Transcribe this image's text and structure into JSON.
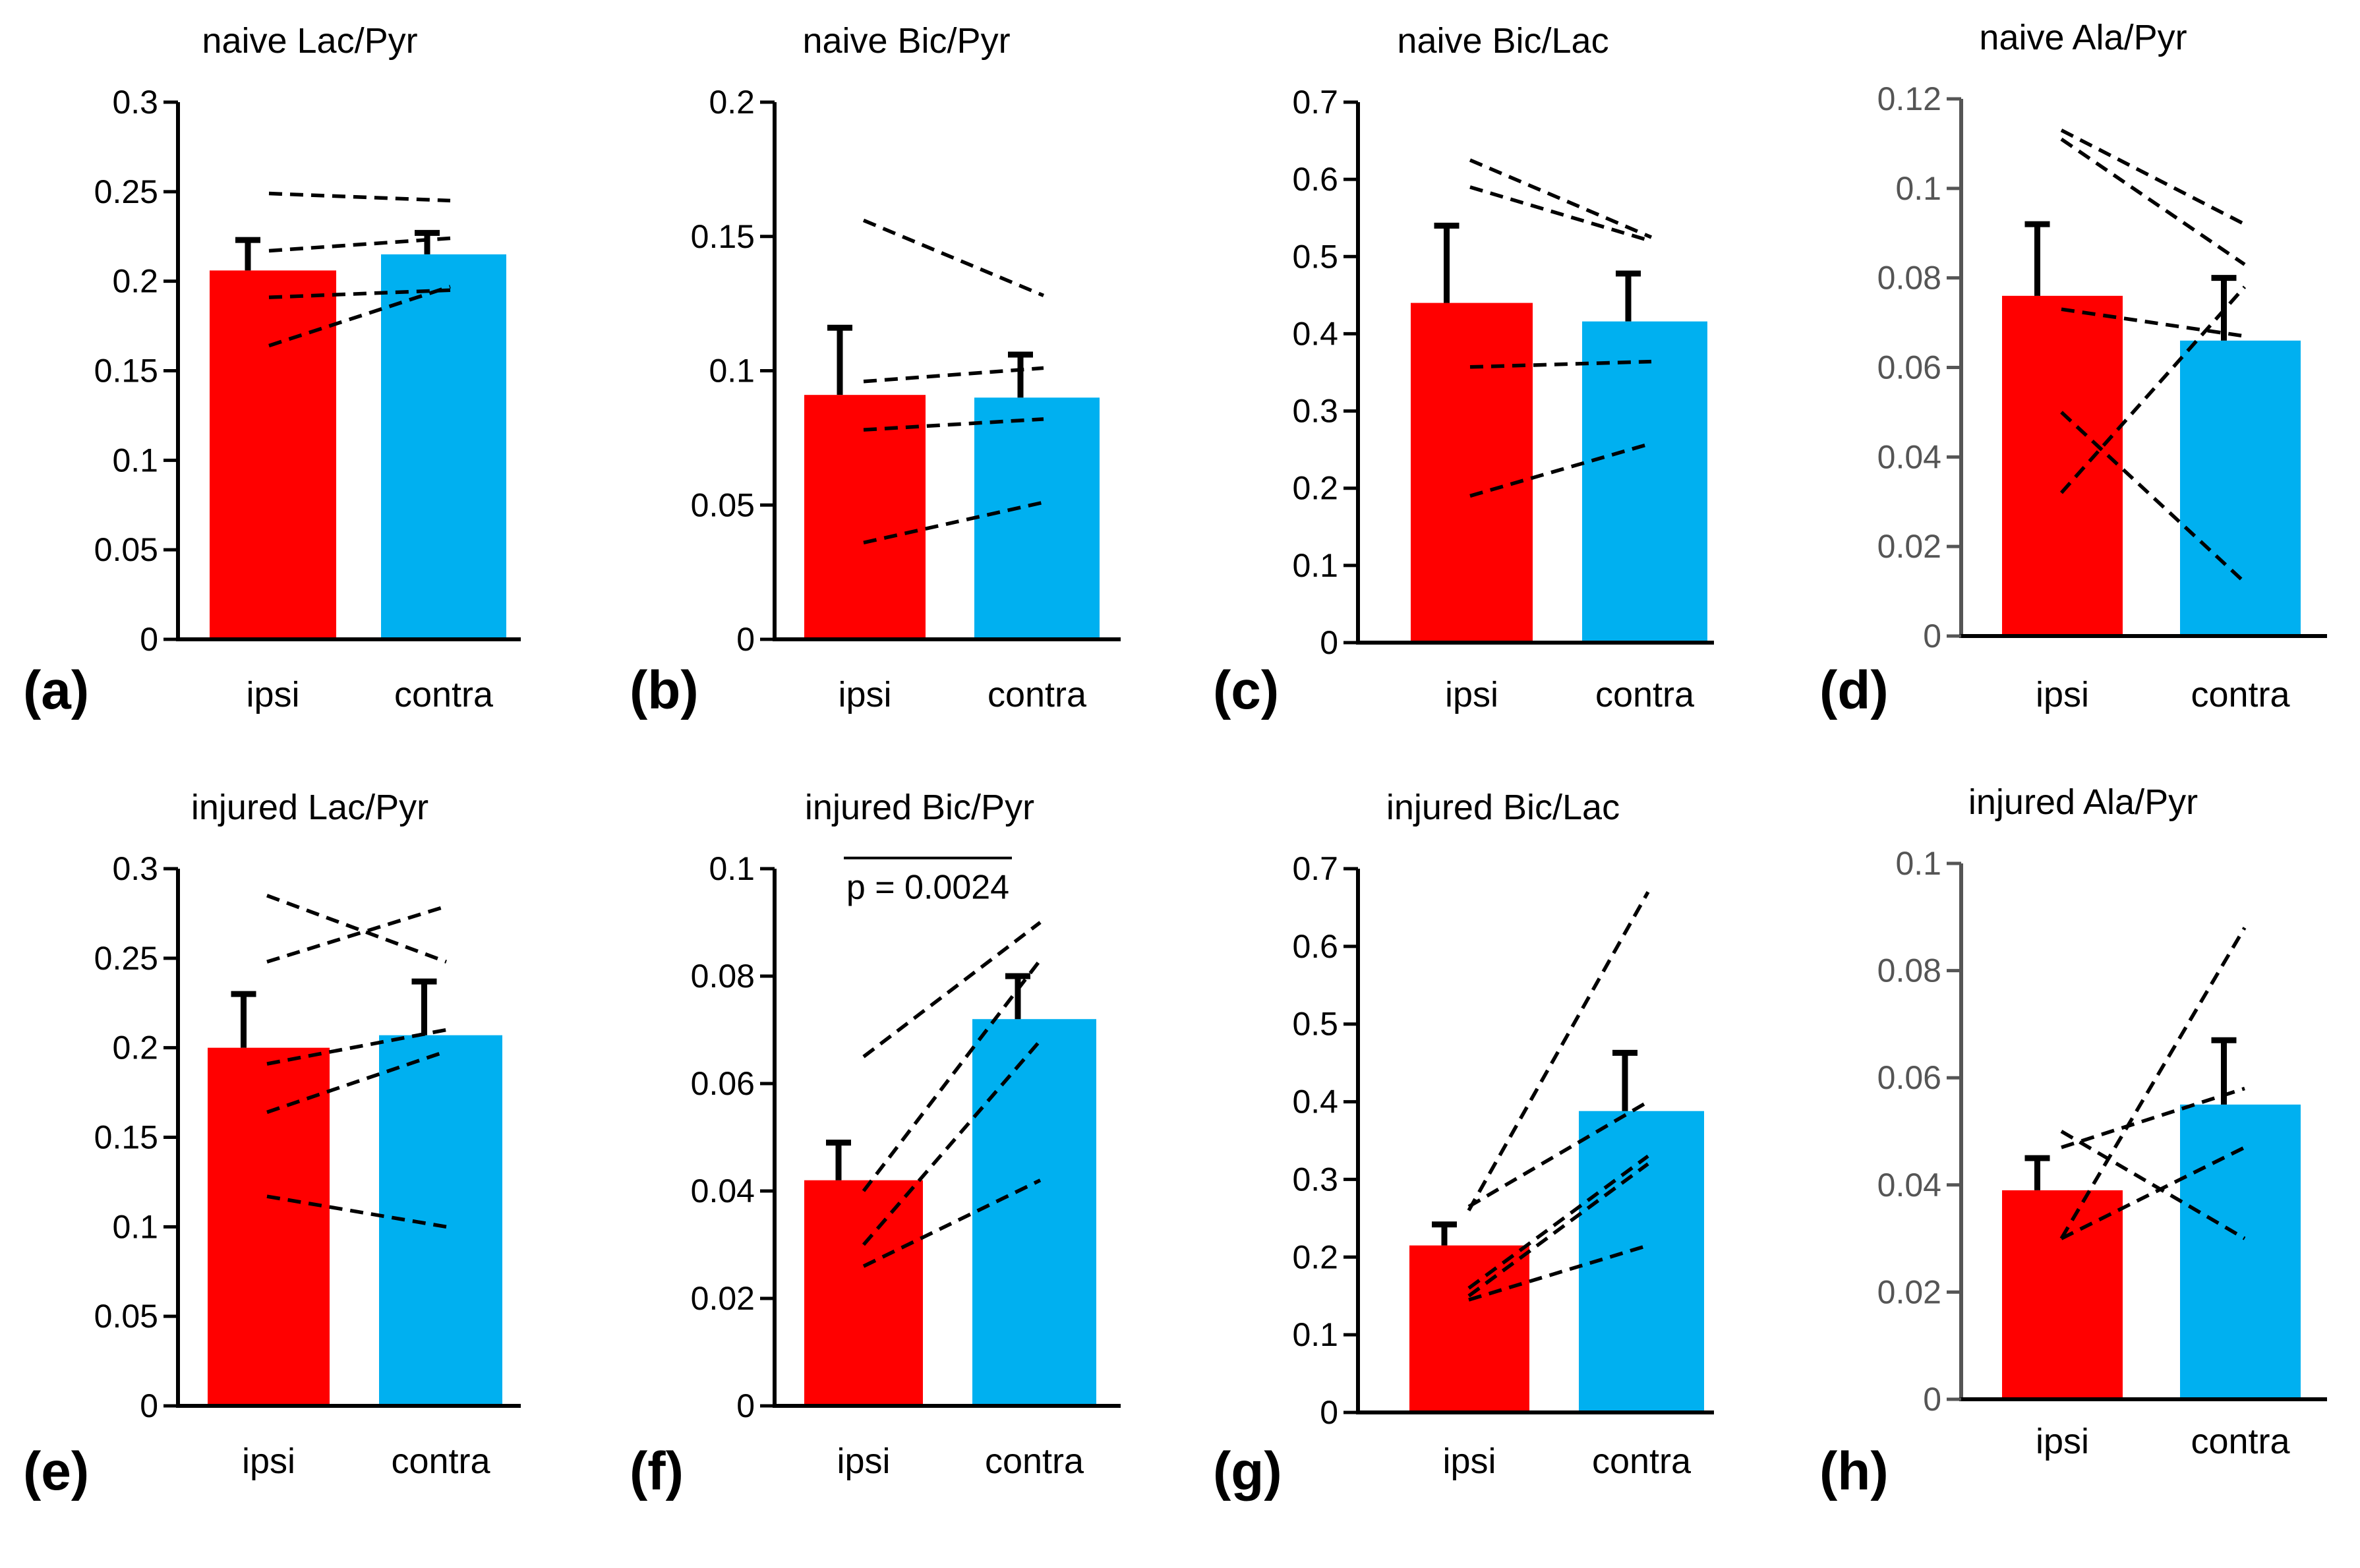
{
  "colors": {
    "ipsi": "#ff0000",
    "contra": "#00b0f0",
    "ink": "#000000",
    "axis_grey": "#555555"
  },
  "chart_data": [
    {
      "type": "bar",
      "panel": "(a)",
      "title": "naive Lac/Pyr",
      "categories": [
        "ipsi",
        "contra"
      ],
      "ylim": [
        0,
        0.3
      ],
      "yticks": [
        0,
        0.05,
        0.1,
        0.15,
        0.2,
        0.25,
        0.3
      ],
      "ytick_labels": [
        "0",
        "0.05",
        "0.1",
        "0.15",
        "0.2",
        "0.25",
        "0.3"
      ],
      "grey_axis": false,
      "values": [
        0.206,
        0.215
      ],
      "errors": [
        0.017,
        0.012
      ],
      "pairs": [
        [
          0.249,
          0.245
        ],
        [
          0.217,
          0.224
        ],
        [
          0.191,
          0.195
        ],
        [
          0.164,
          0.197
        ]
      ],
      "annotation": null
    },
    {
      "type": "bar",
      "panel": "(b)",
      "title": "naive Bic/Pyr",
      "categories": [
        "ipsi",
        "contra"
      ],
      "ylim": [
        0,
        0.2
      ],
      "yticks": [
        0,
        0.05,
        0.1,
        0.15,
        0.2
      ],
      "ytick_labels": [
        "0",
        "0.05",
        "0.1",
        "0.15",
        "0.2"
      ],
      "grey_axis": false,
      "values": [
        0.091,
        0.09
      ],
      "errors": [
        0.025,
        0.016
      ],
      "pairs": [
        [
          0.156,
          0.128
        ],
        [
          0.096,
          0.101
        ],
        [
          0.078,
          0.082
        ],
        [
          0.036,
          0.051
        ]
      ],
      "annotation": null
    },
    {
      "type": "bar",
      "panel": "(c)",
      "title": "naive Bic/Lac",
      "categories": [
        "ipsi",
        "contra"
      ],
      "ylim": [
        0,
        0.7
      ],
      "yticks": [
        0,
        0.1,
        0.2,
        0.3,
        0.4,
        0.5,
        0.6,
        0.7
      ],
      "ytick_labels": [
        "0",
        "0.1",
        "0.2",
        "0.3",
        "0.4",
        "0.5",
        "0.6",
        "0.7"
      ],
      "grey_axis": false,
      "values": [
        0.44,
        0.416
      ],
      "errors": [
        0.1,
        0.062
      ],
      "pairs": [
        [
          0.625,
          0.525
        ],
        [
          0.59,
          0.52
        ],
        [
          0.357,
          0.364
        ],
        [
          0.19,
          0.258
        ]
      ],
      "annotation": null
    },
    {
      "type": "bar",
      "panel": "(d)",
      "title": "naive Ala/Pyr",
      "categories": [
        "ipsi",
        "contra"
      ],
      "ylim": [
        0,
        0.12
      ],
      "yticks": [
        0,
        0.02,
        0.04,
        0.06,
        0.08,
        0.1,
        0.12
      ],
      "ytick_labels": [
        "0",
        "0.02",
        "0.04",
        "0.06",
        "0.08",
        "0.1",
        "0.12"
      ],
      "grey_axis": true,
      "values": [
        0.076,
        0.066
      ],
      "errors": [
        0.016,
        0.014
      ],
      "pairs": [
        [
          0.113,
          0.092
        ],
        [
          0.111,
          0.083
        ],
        [
          0.073,
          0.067
        ],
        [
          0.05,
          0.012
        ],
        [
          0.032,
          0.078
        ]
      ],
      "annotation": null
    },
    {
      "type": "bar",
      "panel": "(e)",
      "title": "injured Lac/Pyr",
      "categories": [
        "ipsi",
        "contra"
      ],
      "ylim": [
        0,
        0.3
      ],
      "yticks": [
        0,
        0.05,
        0.1,
        0.15,
        0.2,
        0.25,
        0.3
      ],
      "ytick_labels": [
        "0",
        "0.05",
        "0.1",
        "0.15",
        "0.2",
        "0.25",
        "0.3"
      ],
      "grey_axis": false,
      "values": [
        0.2,
        0.207
      ],
      "errors": [
        0.03,
        0.03
      ],
      "pairs": [
        [
          0.285,
          0.248
        ],
        [
          0.248,
          0.279
        ],
        [
          0.191,
          0.21
        ],
        [
          0.164,
          0.198
        ],
        [
          0.117,
          0.1
        ]
      ],
      "annotation": null
    },
    {
      "type": "bar",
      "panel": "(f)",
      "title": "injured Bic/Pyr",
      "categories": [
        "ipsi",
        "contra"
      ],
      "ylim": [
        0,
        0.1
      ],
      "yticks": [
        0,
        0.02,
        0.04,
        0.06,
        0.08,
        0.1
      ],
      "ytick_labels": [
        "0",
        "0.02",
        "0.04",
        "0.06",
        "0.08",
        "0.1"
      ],
      "grey_axis": false,
      "values": [
        0.042,
        0.072
      ],
      "errors": [
        0.007,
        0.008
      ],
      "pairs": [
        [
          0.065,
          0.09
        ],
        [
          0.04,
          0.083
        ],
        [
          0.03,
          0.068
        ],
        [
          0.026,
          0.042
        ]
      ],
      "annotation": {
        "text": "p = 0.0024",
        "y": 0.102
      }
    },
    {
      "type": "bar",
      "panel": "(g)",
      "title": "injured Bic/Lac",
      "categories": [
        "ipsi",
        "contra"
      ],
      "ylim": [
        0,
        0.7
      ],
      "yticks": [
        0,
        0.1,
        0.2,
        0.3,
        0.4,
        0.5,
        0.6,
        0.7
      ],
      "ytick_labels": [
        "0",
        "0.1",
        "0.2",
        "0.3",
        "0.4",
        "0.5",
        "0.6",
        "0.7"
      ],
      "grey_axis": false,
      "values": [
        0.215,
        0.388
      ],
      "errors": [
        0.027,
        0.075
      ],
      "pairs": [
        [
          0.26,
          0.67
        ],
        [
          0.265,
          0.4
        ],
        [
          0.16,
          0.33
        ],
        [
          0.15,
          0.32
        ],
        [
          0.145,
          0.215
        ]
      ],
      "annotation": null
    },
    {
      "type": "bar",
      "panel": "(h)",
      "title": "injured Ala/Pyr",
      "categories": [
        "ipsi",
        "contra"
      ],
      "ylim": [
        0,
        0.1
      ],
      "yticks": [
        0,
        0.02,
        0.04,
        0.06,
        0.08,
        0.1
      ],
      "ytick_labels": [
        "0",
        "0.02",
        "0.04",
        "0.06",
        "0.08",
        "0.1"
      ],
      "grey_axis": true,
      "values": [
        0.039,
        0.055
      ],
      "errors": [
        0.006,
        0.012
      ],
      "pairs": [
        [
          0.05,
          0.03
        ],
        [
          0.047,
          0.058
        ],
        [
          0.03,
          0.088
        ],
        [
          0.03,
          0.047
        ]
      ],
      "annotation": null
    }
  ]
}
